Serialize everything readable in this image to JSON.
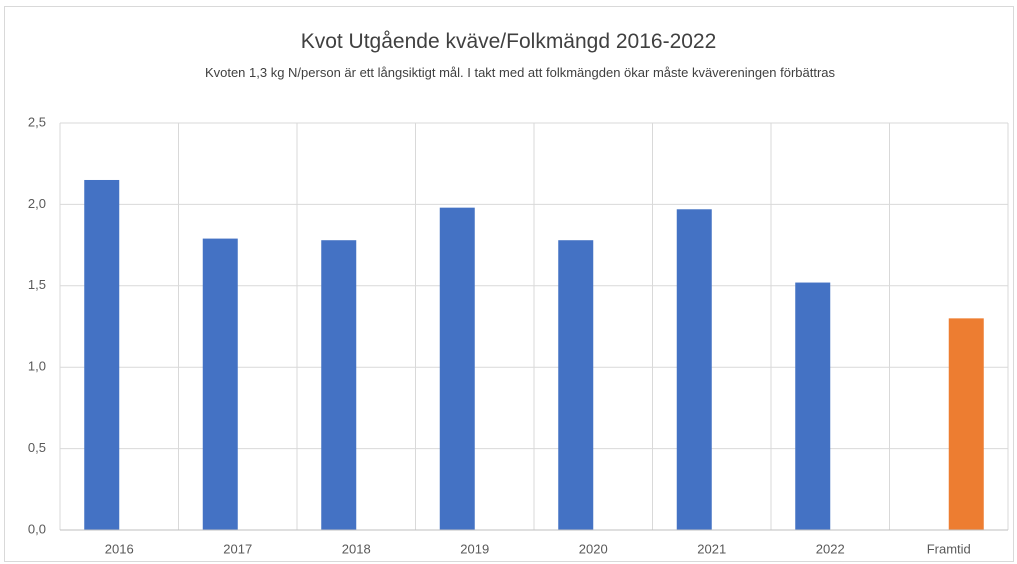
{
  "chart_data": {
    "type": "bar",
    "title": "Kvot Utgående kväve/Folkmängd 2016-2022",
    "subtitle": "Kvoten 1,3 kg N/person är ett långsiktigt mål. I takt med att folkmängden ökar måste kvävereningen förbättras",
    "categories": [
      "2016",
      "2017",
      "2018",
      "2019",
      "2020",
      "2021",
      "2022",
      "Framtid"
    ],
    "series": [
      {
        "color": "#4472c4",
        "values": [
          2.15,
          1.79,
          1.78,
          1.98,
          1.78,
          1.97,
          1.52,
          null
        ]
      },
      {
        "color": "#ed7d31",
        "values": [
          null,
          null,
          null,
          null,
          null,
          null,
          null,
          1.3
        ]
      }
    ],
    "ylim": [
      0,
      2.5
    ],
    "yticks": [
      {
        "value": 0,
        "label": "0,0"
      },
      {
        "value": 0.5,
        "label": "0,5"
      },
      {
        "value": 1,
        "label": "1,0"
      },
      {
        "value": 1.5,
        "label": "1,5"
      },
      {
        "value": 2,
        "label": "2,0"
      },
      {
        "value": 2.5,
        "label": "2,5"
      }
    ],
    "grid": true
  }
}
